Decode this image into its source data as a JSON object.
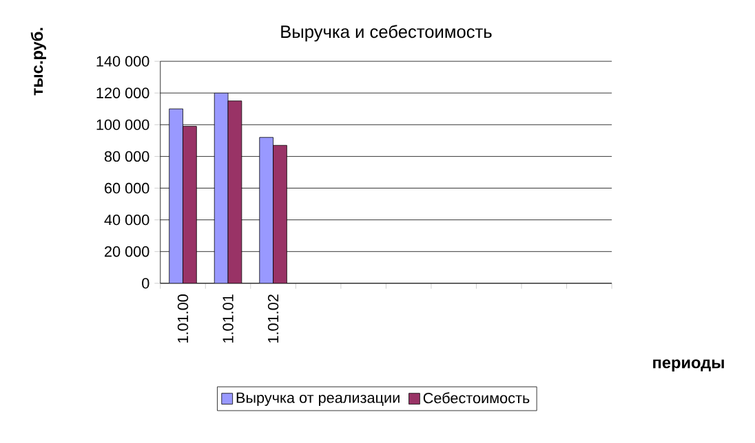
{
  "chart_data": {
    "type": "bar",
    "title": "Выручка и себестоимость",
    "xlabel": "периоды",
    "ylabel": "тыс.руб.",
    "categories": [
      "1.01.00",
      "1.01.01",
      "1.01.02",
      null,
      null,
      null,
      null,
      null,
      null,
      null
    ],
    "series": [
      {
        "name": "Выручка от реализации",
        "color": "#9999ff",
        "values": [
          110000,
          120000,
          92000,
          null,
          null,
          null,
          null,
          null,
          null,
          null
        ]
      },
      {
        "name": "Себестоимость",
        "color": "#993366",
        "values": [
          99000,
          115000,
          87000,
          null,
          null,
          null,
          null,
          null,
          null,
          null
        ]
      }
    ],
    "ylim": [
      0,
      140000
    ],
    "yticks": [
      {
        "value": 0,
        "label": "0"
      },
      {
        "value": 20000,
        "label": "20 000"
      },
      {
        "value": 40000,
        "label": "40 000"
      },
      {
        "value": 60000,
        "label": "60 000"
      },
      {
        "value": 80000,
        "label": "80 000"
      },
      {
        "value": 100000,
        "label": "100 000"
      },
      {
        "value": 120000,
        "label": "120 000"
      },
      {
        "value": 140000,
        "label": "140 000"
      }
    ],
    "grid": "y",
    "legend": "bottom"
  }
}
